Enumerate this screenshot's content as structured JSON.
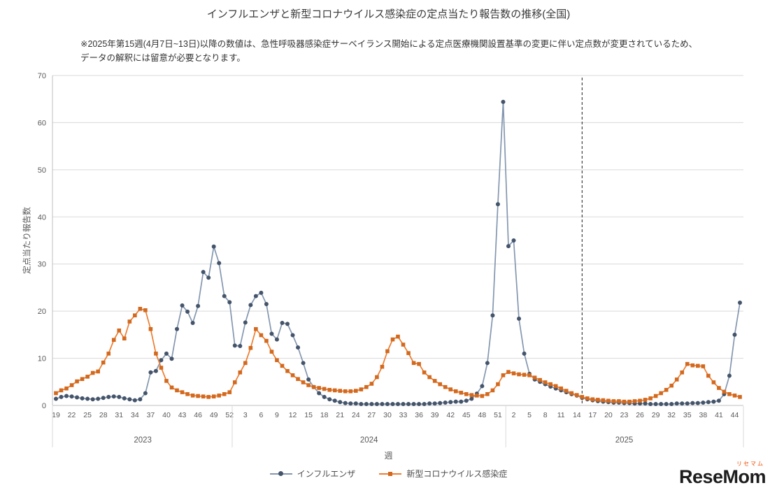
{
  "title": "インフルエンザと新型コロナウイルス感染症の定点当たり報告数の推移(全国)",
  "note_line1": "※2025年第15週(4月7日~13日)以降の数値は、急性呼吸器感染症サーベイランス開始による定点医療機関設置基準の変更に伴い定点数が変更されているため、",
  "note_line2": "データの解釈には留意が必要となります。",
  "axes": {
    "y_title": "定点当たり報告数",
    "x_title": "週"
  },
  "logo": {
    "text": "ReseMom",
    "sub": "リセマム"
  },
  "colors": {
    "influenza_line": "#8497B0",
    "influenza_marker": "#44546A",
    "covid_line": "#ED7D31",
    "covid_marker": "#D2691E",
    "gridline": "#D9D9D9",
    "axis": "#BFBFBF",
    "dashed_line": "#1a1a1a"
  },
  "chart_data": {
    "type": "line",
    "title": "インフルエンザと新型コロナウイルス感染症の定点当たり報告数の推移(全国)",
    "xlabel": "週",
    "ylabel": "定点当たり報告数",
    "ylim": [
      0,
      70
    ],
    "y_ticks": [
      0,
      10,
      20,
      30,
      40,
      50,
      60,
      70
    ],
    "grid": true,
    "legend_position": "bottom",
    "x_tick_labels": [
      "19",
      "22",
      "25",
      "28",
      "31",
      "34",
      "37",
      "40",
      "43",
      "46",
      "49",
      "52",
      "3",
      "6",
      "9",
      "12",
      "15",
      "18",
      "21",
      "24",
      "27",
      "30",
      "33",
      "36",
      "39",
      "42",
      "45",
      "48",
      "51",
      "2",
      "5",
      "8",
      "11",
      "14",
      "17",
      "20",
      "23",
      "26",
      "29",
      "32",
      "35",
      "38",
      "41",
      "44"
    ],
    "year_bands": [
      {
        "label": "2023",
        "start": 0,
        "end": 33
      },
      {
        "label": "2024",
        "start": 34,
        "end": 85
      },
      {
        "label": "2025",
        "start": 86,
        "end": 130
      }
    ],
    "annotation_line_index": 100,
    "annotation_note": "2025年第15週",
    "series": [
      {
        "name": "インフルエンザ",
        "marker": "circle",
        "line_color": "#8497B0",
        "marker_color": "#44546A",
        "values": [
          1.4,
          1.8,
          2.0,
          1.9,
          1.7,
          1.5,
          1.4,
          1.3,
          1.4,
          1.6,
          1.8,
          1.9,
          1.8,
          1.5,
          1.3,
          1.1,
          1.3,
          2.6,
          7.0,
          7.3,
          9.6,
          11.0,
          9.9,
          16.2,
          21.2,
          19.9,
          17.5,
          21.1,
          28.3,
          27.1,
          33.7,
          30.2,
          23.2,
          21.9,
          12.7,
          12.6,
          17.6,
          21.3,
          23.2,
          23.9,
          21.5,
          15.2,
          14.0,
          17.5,
          17.3,
          14.9,
          12.3,
          9.0,
          5.5,
          3.9,
          2.6,
          1.8,
          1.3,
          1.0,
          0.7,
          0.5,
          0.4,
          0.4,
          0.3,
          0.3,
          0.3,
          0.3,
          0.3,
          0.3,
          0.3,
          0.3,
          0.3,
          0.3,
          0.3,
          0.3,
          0.3,
          0.4,
          0.4,
          0.5,
          0.6,
          0.7,
          0.8,
          0.8,
          1.0,
          1.4,
          2.5,
          4.1,
          9.0,
          19.1,
          42.7,
          64.4,
          33.8,
          35.0,
          18.4,
          11.0,
          6.7,
          5.5,
          5.0,
          4.5,
          4.0,
          3.6,
          3.2,
          2.8,
          2.4,
          2.1,
          1.6,
          1.3,
          1.1,
          0.9,
          0.8,
          0.7,
          0.6,
          0.6,
          0.5,
          0.5,
          0.4,
          0.4,
          0.4,
          0.3,
          0.3,
          0.3,
          0.3,
          0.3,
          0.4,
          0.4,
          0.4,
          0.5,
          0.5,
          0.6,
          0.7,
          0.8,
          1.0,
          2.4,
          6.3,
          15.0,
          21.8
        ]
      },
      {
        "name": "新型コロナウイルス感染症",
        "marker": "square",
        "line_color": "#ED7D31",
        "marker_color": "#D2691E",
        "values": [
          2.6,
          3.2,
          3.6,
          4.3,
          5.1,
          5.6,
          6.1,
          6.9,
          7.2,
          9.1,
          11.0,
          13.9,
          15.9,
          14.2,
          17.8,
          19.1,
          20.5,
          20.2,
          16.2,
          11.0,
          8.0,
          5.2,
          3.8,
          3.2,
          2.8,
          2.4,
          2.1,
          2.0,
          1.9,
          1.8,
          1.9,
          2.1,
          2.4,
          2.8,
          4.9,
          7.0,
          9.0,
          12.2,
          16.2,
          14.9,
          13.7,
          11.4,
          9.6,
          8.4,
          7.3,
          6.4,
          5.6,
          4.9,
          4.3,
          3.9,
          3.7,
          3.5,
          3.3,
          3.2,
          3.1,
          3.0,
          3.0,
          3.1,
          3.4,
          3.9,
          4.6,
          6.0,
          8.2,
          11.5,
          14.0,
          14.6,
          12.9,
          11.1,
          9.0,
          8.8,
          7.0,
          6.0,
          5.2,
          4.5,
          3.9,
          3.4,
          3.0,
          2.7,
          2.4,
          2.2,
          2.1,
          2.0,
          2.4,
          3.2,
          4.5,
          6.4,
          7.1,
          6.8,
          6.6,
          6.5,
          6.4,
          5.9,
          5.4,
          4.9,
          4.5,
          4.1,
          3.6,
          3.1,
          2.6,
          2.2,
          1.8,
          1.5,
          1.3,
          1.2,
          1.1,
          1.0,
          0.9,
          0.9,
          0.8,
          0.8,
          0.9,
          1.0,
          1.2,
          1.5,
          2.0,
          2.6,
          3.3,
          4.2,
          5.5,
          7.0,
          8.8,
          8.5,
          8.4,
          8.3,
          6.3,
          4.9,
          3.7,
          2.9,
          2.4,
          2.1,
          1.8
        ]
      }
    ]
  }
}
